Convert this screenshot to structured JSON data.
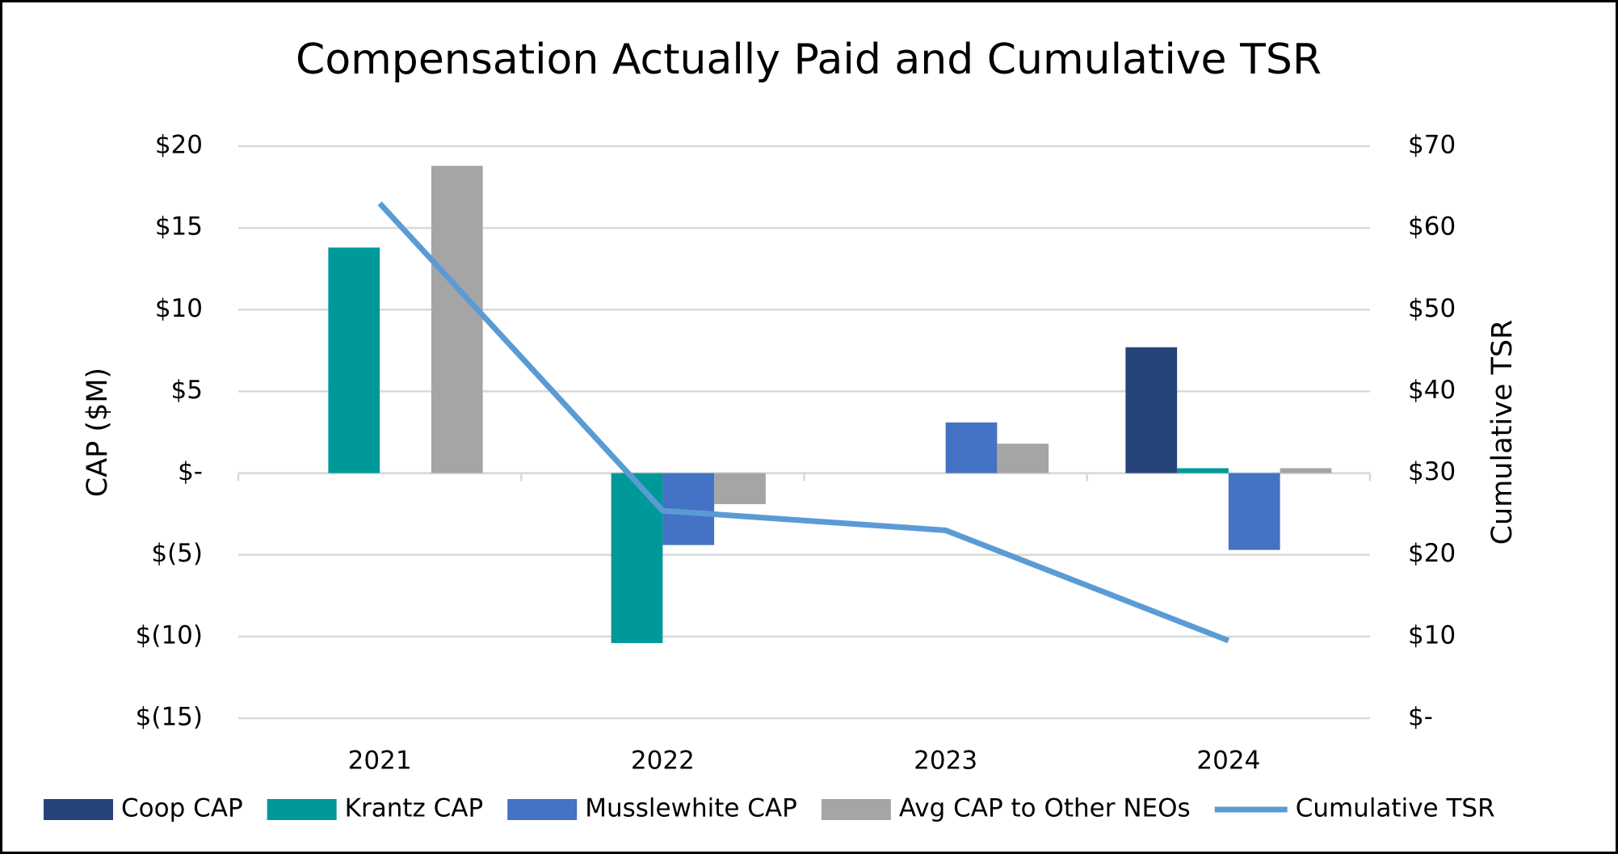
{
  "chart_data": {
    "type": "bar",
    "title": "Compensation Actually Paid and Cumulative TSR",
    "y_label": "CAP ($M)",
    "y2_label": "Cumulative TSR",
    "categories": [
      "2021",
      "2022",
      "2023",
      "2024"
    ],
    "series": [
      {
        "name": "Coop CAP",
        "color": "#264478",
        "type": "bar",
        "values": [
          null,
          null,
          null,
          7.7
        ]
      },
      {
        "name": "Krantz CAP",
        "color": "#009999",
        "type": "bar",
        "values": [
          13.8,
          -10.4,
          null,
          0.3
        ]
      },
      {
        "name": "Musslewhite CAP",
        "color": "#4472c4",
        "type": "bar",
        "values": [
          null,
          -4.4,
          3.1,
          -4.7
        ]
      },
      {
        "name": "Avg CAP to Other NEOs",
        "color": "#a5a5a5",
        "type": "bar",
        "values": [
          18.8,
          -1.9,
          1.8,
          0.3
        ]
      },
      {
        "name": "Cumulative TSR",
        "color": "#5b9bd5",
        "type": "line",
        "axis": "y2",
        "values": [
          63,
          25.4,
          23,
          9.5
        ]
      }
    ],
    "ylim": [
      -15,
      20
    ],
    "yticks": [
      {
        "value": -15,
        "label": "$(15)"
      },
      {
        "value": -10,
        "label": "$(10)"
      },
      {
        "value": -5,
        "label": "$(5)"
      },
      {
        "value": 0,
        "label": "$-"
      },
      {
        "value": 5,
        "label": "$5"
      },
      {
        "value": 10,
        "label": "$10"
      },
      {
        "value": 15,
        "label": "$15"
      },
      {
        "value": 20,
        "label": "$20"
      }
    ],
    "y2lim": [
      0,
      70
    ],
    "y2ticks": [
      {
        "value": 0,
        "label": "$-"
      },
      {
        "value": 10,
        "label": "$10"
      },
      {
        "value": 20,
        "label": "$20"
      },
      {
        "value": 30,
        "label": "$30"
      },
      {
        "value": 40,
        "label": "$40"
      },
      {
        "value": 50,
        "label": "$50"
      },
      {
        "value": 60,
        "label": "$60"
      },
      {
        "value": 70,
        "label": "$70"
      }
    ],
    "grid": true,
    "legend": "bottom"
  }
}
